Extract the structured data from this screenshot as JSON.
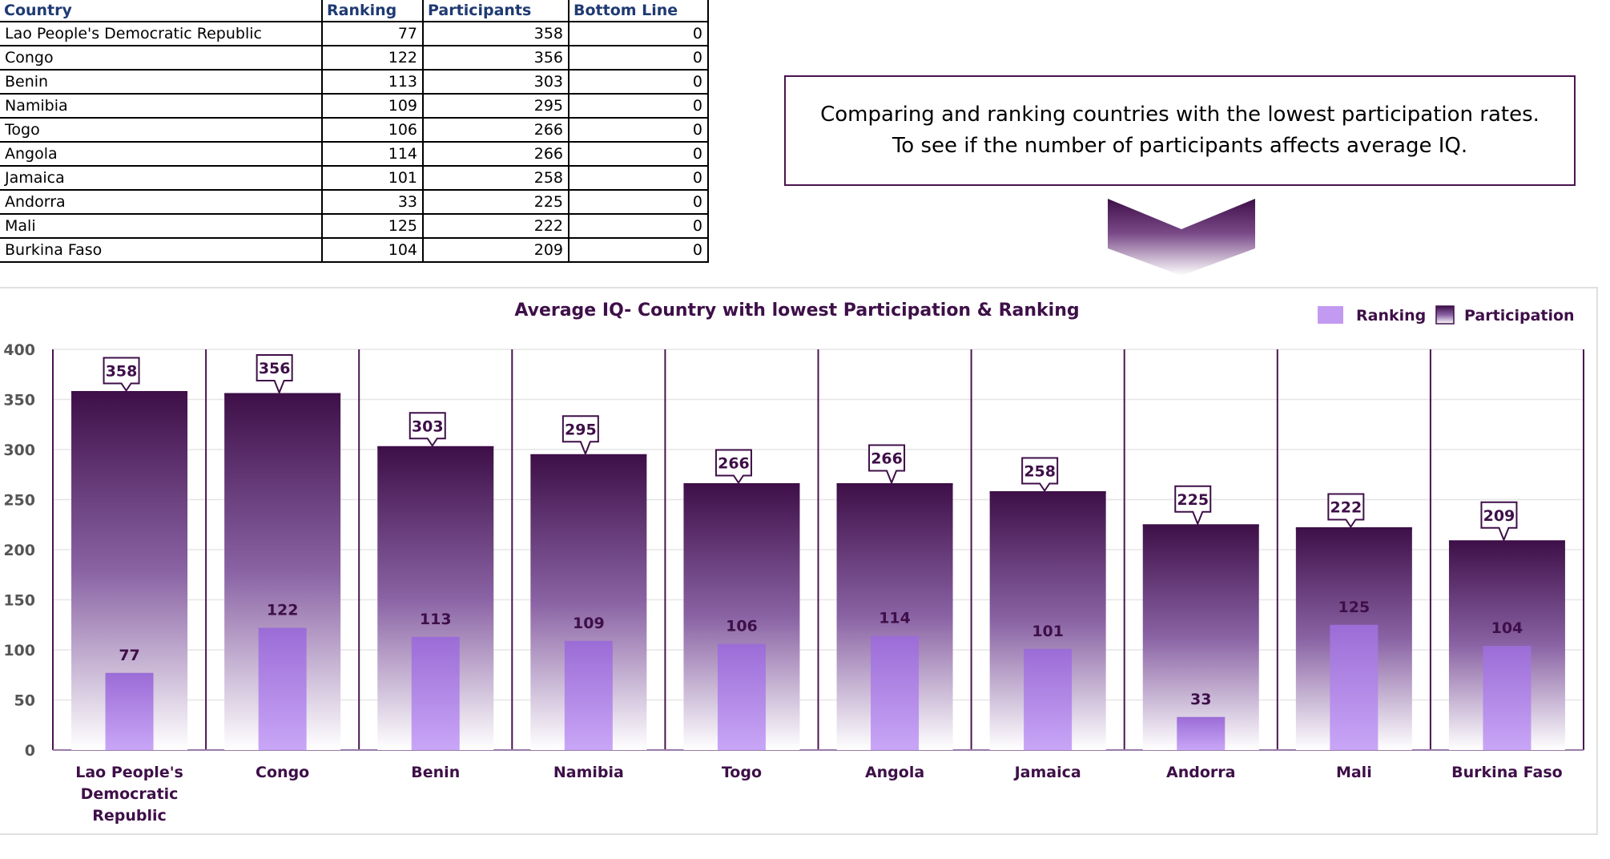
{
  "table": {
    "headers": [
      "Country",
      "Ranking",
      "Participants",
      "Bottom Line"
    ],
    "rows": [
      [
        "Lao People's Democratic Republic",
        "77",
        "358",
        "0"
      ],
      [
        "Congo",
        "122",
        "356",
        "0"
      ],
      [
        "Benin",
        "113",
        "303",
        "0"
      ],
      [
        "Namibia",
        "109",
        "295",
        "0"
      ],
      [
        "Togo",
        "106",
        "266",
        "0"
      ],
      [
        "Angola",
        "114",
        "266",
        "0"
      ],
      [
        "Jamaica",
        "101",
        "258",
        "0"
      ],
      [
        "Andorra",
        "33",
        "225",
        "0"
      ],
      [
        "Mali",
        "125",
        "222",
        "0"
      ],
      [
        "Burkina Faso",
        "104",
        "209",
        "0"
      ]
    ]
  },
  "note": {
    "line1": "Comparing and ranking countries with the lowest participation rates.",
    "line2": "To see if the number of participants affects average IQ."
  },
  "chart_data": {
    "type": "bar",
    "title": "Average IQ- Country with lowest Participation & Ranking",
    "categories": [
      "Lao People's Democratic Republic",
      "Congo",
      "Benin",
      "Namibia",
      "Togo",
      "Angola",
      "Jamaica",
      "Andorra",
      "Mali",
      "Burkina Faso"
    ],
    "series": [
      {
        "name": "Ranking",
        "values": [
          77,
          122,
          113,
          109,
          106,
          114,
          101,
          33,
          125,
          104
        ],
        "color": "#c39af2"
      },
      {
        "name": "Participation",
        "values": [
          358,
          356,
          303,
          295,
          266,
          266,
          258,
          225,
          222,
          209
        ],
        "color": "#3e0f48"
      }
    ],
    "ylim": [
      0,
      400
    ],
    "yticks": [
      0,
      50,
      100,
      150,
      200,
      250,
      300,
      350,
      400
    ],
    "grid": true,
    "legend": "top-right",
    "xlabel": "",
    "ylabel": ""
  }
}
